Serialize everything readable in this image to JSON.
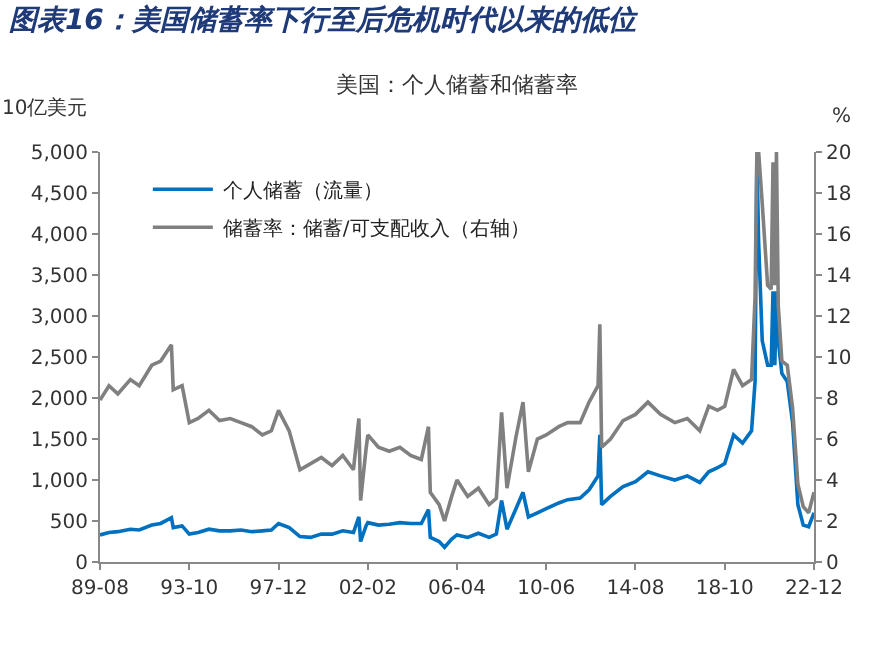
{
  "chart_data": {
    "type": "line",
    "title": "图表16：美国储蓄率下行至后危机时代以来的低位",
    "subtitle": "美国：个人储蓄和储蓄率",
    "ylabel": "10亿美元",
    "y2label": "%",
    "x": [
      "1989-08",
      "1990-01",
      "1990-06",
      "1991-01",
      "1991-06",
      "1992-01",
      "1992-06",
      "1992-12",
      "1993-01",
      "1993-06",
      "1993-10",
      "1994-03",
      "1994-09",
      "1995-03",
      "1995-09",
      "1996-03",
      "1996-09",
      "1997-03",
      "1997-08",
      "1997-12",
      "1998-06",
      "1998-12",
      "1999-06",
      "1999-12",
      "2000-06",
      "2000-12",
      "2001-06",
      "2001-09",
      "2001-10",
      "2002-01",
      "2002-02",
      "2002-08",
      "2003-02",
      "2003-08",
      "2004-02",
      "2004-08",
      "2004-12",
      "2005-01",
      "2005-06",
      "2005-09",
      "2006-01",
      "2006-04",
      "2006-10",
      "2007-04",
      "2007-10",
      "2008-02",
      "2008-05",
      "2008-08",
      "2009-01",
      "2009-05",
      "2009-08",
      "2010-01",
      "2010-06",
      "2011-01",
      "2011-06",
      "2012-01",
      "2012-06",
      "2012-11",
      "2012-12",
      "2013-01",
      "2013-06",
      "2014-01",
      "2014-08",
      "2015-03",
      "2015-10",
      "2016-06",
      "2017-01",
      "2017-08",
      "2018-01",
      "2018-06",
      "2018-10",
      "2019-03",
      "2019-08",
      "2020-01",
      "2020-03",
      "2020-04",
      "2020-05",
      "2020-07",
      "2020-10",
      "2020-12",
      "2021-01",
      "2021-02",
      "2021-03",
      "2021-04",
      "2021-06",
      "2021-09",
      "2021-12",
      "2022-03",
      "2022-06",
      "2022-09",
      "2022-12"
    ],
    "series": [
      {
        "name": "个人储蓄（流量）",
        "color": "#0070c0",
        "values": [
          330,
          360,
          370,
          400,
          390,
          450,
          470,
          540,
          420,
          440,
          340,
          360,
          400,
          380,
          380,
          390,
          370,
          380,
          390,
          470,
          420,
          310,
          300,
          340,
          340,
          380,
          360,
          550,
          250,
          440,
          480,
          450,
          460,
          480,
          470,
          470,
          640,
          300,
          250,
          180,
          280,
          330,
          300,
          350,
          300,
          340,
          750,
          400,
          650,
          850,
          550,
          600,
          650,
          720,
          760,
          780,
          880,
          1050,
          1550,
          700,
          800,
          920,
          980,
          1100,
          1050,
          1000,
          1050,
          970,
          1100,
          1150,
          1200,
          1550,
          1450,
          1600,
          2200,
          4950,
          3900,
          2700,
          2400,
          2400,
          3300,
          2400,
          3300,
          2700,
          2300,
          2200,
          1700,
          700,
          450,
          430,
          600
        ]
      },
      {
        "name": "储蓄率：储蓄/可支配收入（右轴）",
        "color": "#808080",
        "axis": "y2",
        "values": [
          7.9,
          8.6,
          8.2,
          8.9,
          8.6,
          9.6,
          9.8,
          10.6,
          8.4,
          8.6,
          6.8,
          7.0,
          7.4,
          6.9,
          7.0,
          6.8,
          6.6,
          6.2,
          6.4,
          7.4,
          6.4,
          4.5,
          4.8,
          5.1,
          4.7,
          5.2,
          4.5,
          7.0,
          3.0,
          5.5,
          6.2,
          5.6,
          5.4,
          5.6,
          5.2,
          5.0,
          6.6,
          3.4,
          2.8,
          2.0,
          3.2,
          4.0,
          3.2,
          3.6,
          2.8,
          3.1,
          7.3,
          3.6,
          6.1,
          7.8,
          4.4,
          6.0,
          6.2,
          6.6,
          6.8,
          6.8,
          7.8,
          8.6,
          11.6,
          5.6,
          6.0,
          6.9,
          7.2,
          7.8,
          7.2,
          6.8,
          7.0,
          6.4,
          7.6,
          7.4,
          7.6,
          9.4,
          8.6,
          8.9,
          12.9,
          20,
          20,
          17.5,
          13.5,
          13.3,
          19.5,
          13.5,
          20,
          12.5,
          9.8,
          9.6,
          7.5,
          3.8,
          2.7,
          2.4,
          3.4
        ]
      }
    ],
    "xlim": [
      "1989-08",
      "2022-12"
    ],
    "xticks": [
      {
        "value": "1989-08",
        "label": "89-08"
      },
      {
        "value": "1993-10",
        "label": "93-10"
      },
      {
        "value": "1997-12",
        "label": "97-12"
      },
      {
        "value": "2002-02",
        "label": "02-02"
      },
      {
        "value": "2006-04",
        "label": "06-04"
      },
      {
        "value": "2010-06",
        "label": "10-06"
      },
      {
        "value": "2014-08",
        "label": "14-08"
      },
      {
        "value": "2018-10",
        "label": "18-10"
      },
      {
        "value": "2022-12",
        "label": "22-12"
      }
    ],
    "ylim": [
      0,
      5000
    ],
    "yticks": [
      0,
      {
        "value": 500,
        "label": "500"
      },
      {
        "value": 1000,
        "label": "1,000"
      },
      {
        "value": 1500,
        "label": "1,500"
      },
      {
        "value": 2000,
        "label": "2,000"
      },
      {
        "value": 2500,
        "label": "2,500"
      },
      {
        "value": 3000,
        "label": "3,000"
      },
      {
        "value": 3500,
        "label": "3,500"
      },
      {
        "value": 4000,
        "label": "4,000"
      },
      {
        "value": 4500,
        "label": "4,500"
      },
      {
        "value": 5000,
        "label": "5,000"
      }
    ],
    "y2lim": [
      0,
      20
    ],
    "y2ticks": [
      0,
      2,
      4,
      6,
      8,
      10,
      12,
      14,
      16,
      18,
      20
    ],
    "legend": "top left",
    "marker": "none",
    "line_style": "solid"
  }
}
